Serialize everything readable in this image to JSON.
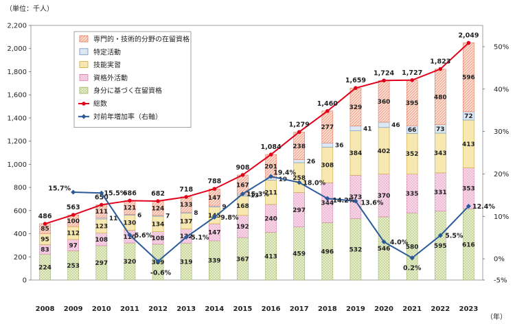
{
  "chart_data": {
    "type": "bar",
    "unit_label": "（単位：千人）",
    "x_unit": "（年）",
    "categories": [
      "2008",
      "2009",
      "2010",
      "2011",
      "2012",
      "2013",
      "2014",
      "2015",
      "2016",
      "2017",
      "2018",
      "2019",
      "2020",
      "2021",
      "2022",
      "2023"
    ],
    "series": [
      {
        "name": "身分に基づく在留資格",
        "color": "#e8efc9",
        "pattern": "grid",
        "values": [
          224,
          253,
          297,
          320,
          309,
          319,
          339,
          367,
          413,
          459,
          496,
          532,
          546,
          580,
          595,
          616
        ]
      },
      {
        "name": "資格外活動",
        "color": "#f7d3e6",
        "pattern": "dots",
        "values": [
          83,
          97,
          108,
          110,
          108,
          122,
          147,
          192,
          240,
          297,
          344,
          373,
          370,
          335,
          331,
          353
        ]
      },
      {
        "name": "技能実習",
        "color": "#f5e6a9",
        "pattern": "plain",
        "values": [
          95,
          112,
          123,
          130,
          134,
          137,
          145,
          168,
          211,
          258,
          308,
          384,
          402,
          352,
          343,
          413
        ]
      },
      {
        "name": "特定活動",
        "color": "#dce6f3",
        "pattern": "plain",
        "values": [
          0,
          0,
          11,
          6,
          7,
          8,
          9,
          13,
          19,
          26,
          36,
          41,
          46,
          66,
          73,
          72
        ]
      },
      {
        "name": "専門的・技術的分野の在留資格",
        "color": "#fbd5c5",
        "pattern": "hatch",
        "values": [
          85,
          100,
          111,
          121,
          124,
          133,
          147,
          167,
          201,
          238,
          277,
          329,
          360,
          395,
          480,
          596
        ]
      }
    ],
    "segment_labels": [
      [
        "224",
        "253",
        "297",
        "320",
        "309",
        "319",
        "339",
        "367",
        "413",
        "459",
        "496",
        "532",
        "546",
        "580",
        "595",
        "616"
      ],
      [
        "83",
        "97",
        "108",
        "110",
        "108",
        "122",
        "147",
        "192",
        "240",
        "297",
        "344",
        "373",
        "370",
        "335",
        "331",
        "353"
      ],
      [
        "95",
        "112",
        "123",
        "130",
        "134",
        "137",
        "145",
        "168",
        "211",
        "258",
        "308",
        "384",
        "402",
        "352",
        "343",
        "413"
      ],
      [
        "",
        "",
        "11",
        "6",
        "7",
        "8",
        "9",
        "13",
        "19",
        "26",
        "36",
        "41",
        "46",
        "66",
        "73",
        "72"
      ],
      [
        "85",
        "100",
        "111",
        "121",
        "124",
        "133",
        "147",
        "167",
        "201",
        "238",
        "277",
        "329",
        "360",
        "395",
        "480",
        "596"
      ]
    ],
    "totals": {
      "name": "総数",
      "color": "#e0001b",
      "values": [
        486,
        563,
        650,
        686,
        682,
        718,
        788,
        908,
        1084,
        1279,
        1460,
        1659,
        1724,
        1727,
        1823,
        2049
      ],
      "labels": [
        "486",
        "563",
        "650",
        "686",
        "682",
        "718",
        "788",
        "908",
        "1,084",
        "1,279",
        "1,460",
        "1,659",
        "1,724",
        "1,727",
        "1,823",
        "2,049"
      ]
    },
    "growth": {
      "name": "対前年増加率（右軸）",
      "color": "#2a5a99",
      "values": [
        null,
        15.7,
        15.5,
        5.6,
        -0.6,
        5.1,
        9.8,
        15.3,
        19.4,
        18.0,
        14.2,
        13.6,
        4.0,
        0.2,
        5.5,
        12.4
      ],
      "labels": [
        "",
        "15.7%",
        "15.5%",
        "5.6%",
        "-0.6%",
        "5.1%",
        "9.8%",
        "15.3%",
        "19.4%",
        "18.0%",
        "14.2%",
        "13.6%",
        "4.0%",
        "0.2%",
        "5.5%",
        "12.4%"
      ]
    },
    "y_left": {
      "min": 0,
      "max": 2200,
      "step": 200,
      "tick_labels": [
        "0",
        "200",
        "400",
        "600",
        "800",
        "1,000",
        "1,200",
        "1,400",
        "1,600",
        "1,800",
        "2,000",
        "2,200"
      ]
    },
    "y_right": {
      "min": -5,
      "max": 55,
      "tick_labels": [
        "-5%",
        "0%",
        "10%",
        "20%",
        "30%",
        "40%",
        "50%"
      ],
      "tick_values": [
        -5,
        0,
        10,
        20,
        30,
        40,
        50
      ]
    },
    "legend_position": "top-left",
    "legend": [
      {
        "name": "専門的・技術的分野の在留資格",
        "kind": "box",
        "series": 4
      },
      {
        "name": "特定活動",
        "kind": "box",
        "series": 3
      },
      {
        "name": "技能実習",
        "kind": "box",
        "series": 2
      },
      {
        "name": "資格外活動",
        "kind": "box",
        "series": 1
      },
      {
        "name": "身分に基づく在留資格",
        "kind": "box",
        "series": 0
      },
      {
        "name": "総数",
        "kind": "line-red"
      },
      {
        "name": "対前年増加率（右軸）",
        "kind": "line-blue"
      }
    ]
  }
}
